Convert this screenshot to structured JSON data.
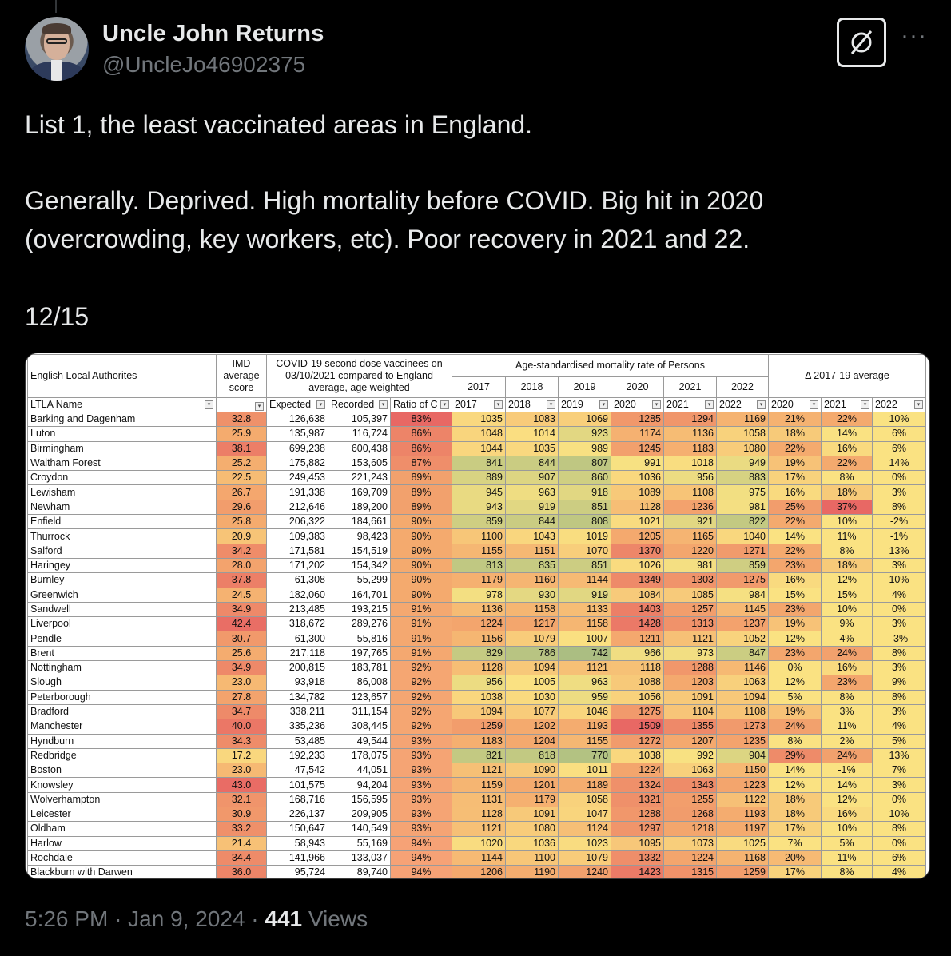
{
  "author": {
    "name": "Uncle John Returns",
    "handle": "@UncleJo46902375"
  },
  "icons": {
    "grok": "grok-slash-icon",
    "more": "more-icon",
    "avatar": "profile-photo"
  },
  "tweet": {
    "line1": "List 1, the least vaccinated areas in England.",
    "line2": "Generally. Deprived. High mortality before COVID. Big hit in 2020 (overcrowding, key workers, etc). Poor recovery in 2021 and 22.",
    "line3": "12/15"
  },
  "table": {
    "headers": {
      "ela": "English Local Authorites",
      "imd": "IMD average score",
      "vacc": "COVID-19 second dose vaccinees on 03/10/2021 compared to England average, age weighted",
      "mort": "Age-standardised mortality rate of Persons",
      "delta": "Δ 2017-19 average",
      "mort_years": [
        "2017",
        "2018",
        "2019",
        "2020",
        "2021",
        "2022"
      ]
    },
    "filters": [
      "LTLA Name",
      "",
      "Expected",
      "Recorded",
      "Ratio of C",
      "2017",
      "2018",
      "2019",
      "2020",
      "2021",
      "2022",
      "2020",
      "2021",
      "2022"
    ],
    "rows": [
      [
        "Barking and Dagenham",
        "32.8",
        "126,638",
        "105,397",
        "83%",
        "1035",
        "1083",
        "1069",
        "1285",
        "1294",
        "1169",
        "21%",
        "22%",
        "10%"
      ],
      [
        "Luton",
        "25.9",
        "135,987",
        "116,724",
        "86%",
        "1048",
        "1014",
        "923",
        "1174",
        "1136",
        "1058",
        "18%",
        "14%",
        "6%"
      ],
      [
        "Birmingham",
        "38.1",
        "699,238",
        "600,438",
        "86%",
        "1044",
        "1035",
        "989",
        "1245",
        "1183",
        "1080",
        "22%",
        "16%",
        "6%"
      ],
      [
        "Waltham Forest",
        "25.2",
        "175,882",
        "153,605",
        "87%",
        "841",
        "844",
        "807",
        "991",
        "1018",
        "949",
        "19%",
        "22%",
        "14%"
      ],
      [
        "Croydon",
        "22.5",
        "249,453",
        "221,243",
        "89%",
        "889",
        "907",
        "860",
        "1036",
        "956",
        "883",
        "17%",
        "8%",
        "0%"
      ],
      [
        "Lewisham",
        "26.7",
        "191,338",
        "169,709",
        "89%",
        "945",
        "963",
        "918",
        "1089",
        "1108",
        "975",
        "16%",
        "18%",
        "3%"
      ],
      [
        "Newham",
        "29.6",
        "212,646",
        "189,200",
        "89%",
        "943",
        "919",
        "851",
        "1128",
        "1236",
        "981",
        "25%",
        "37%",
        "8%"
      ],
      [
        "Enfield",
        "25.8",
        "206,322",
        "184,661",
        "90%",
        "859",
        "844",
        "808",
        "1021",
        "921",
        "822",
        "22%",
        "10%",
        "-2%"
      ],
      [
        "Thurrock",
        "20.9",
        "109,383",
        "98,423",
        "90%",
        "1100",
        "1043",
        "1019",
        "1205",
        "1165",
        "1040",
        "14%",
        "11%",
        "-1%"
      ],
      [
        "Salford",
        "34.2",
        "171,581",
        "154,519",
        "90%",
        "1155",
        "1151",
        "1070",
        "1370",
        "1220",
        "1271",
        "22%",
        "8%",
        "13%"
      ],
      [
        "Haringey",
        "28.0",
        "171,202",
        "154,342",
        "90%",
        "813",
        "835",
        "851",
        "1026",
        "981",
        "859",
        "23%",
        "18%",
        "3%"
      ],
      [
        "Burnley",
        "37.8",
        "61,308",
        "55,299",
        "90%",
        "1179",
        "1160",
        "1144",
        "1349",
        "1303",
        "1275",
        "16%",
        "12%",
        "10%"
      ],
      [
        "Greenwich",
        "24.5",
        "182,060",
        "164,701",
        "90%",
        "978",
        "930",
        "919",
        "1084",
        "1085",
        "984",
        "15%",
        "15%",
        "4%"
      ],
      [
        "Sandwell",
        "34.9",
        "213,485",
        "193,215",
        "91%",
        "1136",
        "1158",
        "1133",
        "1403",
        "1257",
        "1145",
        "23%",
        "10%",
        "0%"
      ],
      [
        "Liverpool",
        "42.4",
        "318,672",
        "289,276",
        "91%",
        "1224",
        "1217",
        "1158",
        "1428",
        "1313",
        "1237",
        "19%",
        "9%",
        "3%"
      ],
      [
        "Pendle",
        "30.7",
        "61,300",
        "55,816",
        "91%",
        "1156",
        "1079",
        "1007",
        "1211",
        "1121",
        "1052",
        "12%",
        "4%",
        "-3%"
      ],
      [
        "Brent",
        "25.6",
        "217,118",
        "197,765",
        "91%",
        "829",
        "786",
        "742",
        "966",
        "973",
        "847",
        "23%",
        "24%",
        "8%"
      ],
      [
        "Nottingham",
        "34.9",
        "200,815",
        "183,781",
        "92%",
        "1128",
        "1094",
        "1121",
        "1118",
        "1288",
        "1146",
        "0%",
        "16%",
        "3%"
      ],
      [
        "Slough",
        "23.0",
        "93,918",
        "86,008",
        "92%",
        "956",
        "1005",
        "963",
        "1088",
        "1203",
        "1063",
        "12%",
        "23%",
        "9%"
      ],
      [
        "Peterborough",
        "27.8",
        "134,782",
        "123,657",
        "92%",
        "1038",
        "1030",
        "959",
        "1056",
        "1091",
        "1094",
        "5%",
        "8%",
        "8%"
      ],
      [
        "Bradford",
        "34.7",
        "338,211",
        "311,154",
        "92%",
        "1094",
        "1077",
        "1046",
        "1275",
        "1104",
        "1108",
        "19%",
        "3%",
        "3%"
      ],
      [
        "Manchester",
        "40.0",
        "335,236",
        "308,445",
        "92%",
        "1259",
        "1202",
        "1193",
        "1509",
        "1355",
        "1273",
        "24%",
        "11%",
        "4%"
      ],
      [
        "Hyndburn",
        "34.3",
        "53,485",
        "49,544",
        "93%",
        "1183",
        "1204",
        "1155",
        "1272",
        "1207",
        "1235",
        "8%",
        "2%",
        "5%"
      ],
      [
        "Redbridge",
        "17.2",
        "192,233",
        "178,075",
        "93%",
        "821",
        "818",
        "770",
        "1038",
        "992",
        "904",
        "29%",
        "24%",
        "13%"
      ],
      [
        "Boston",
        "23.0",
        "47,542",
        "44,051",
        "93%",
        "1121",
        "1090",
        "1011",
        "1224",
        "1063",
        "1150",
        "14%",
        "-1%",
        "7%"
      ],
      [
        "Knowsley",
        "43.0",
        "101,575",
        "94,204",
        "93%",
        "1159",
        "1201",
        "1189",
        "1324",
        "1343",
        "1223",
        "12%",
        "14%",
        "3%"
      ],
      [
        "Wolverhampton",
        "32.1",
        "168,716",
        "156,595",
        "93%",
        "1131",
        "1179",
        "1058",
        "1321",
        "1255",
        "1122",
        "18%",
        "12%",
        "0%"
      ],
      [
        "Leicester",
        "30.9",
        "226,137",
        "209,905",
        "93%",
        "1128",
        "1091",
        "1047",
        "1288",
        "1268",
        "1193",
        "18%",
        "16%",
        "10%"
      ],
      [
        "Oldham",
        "33.2",
        "150,647",
        "140,549",
        "93%",
        "1121",
        "1080",
        "1124",
        "1297",
        "1218",
        "1197",
        "17%",
        "10%",
        "8%"
      ],
      [
        "Harlow",
        "21.4",
        "58,943",
        "55,169",
        "94%",
        "1020",
        "1036",
        "1023",
        "1095",
        "1073",
        "1025",
        "7%",
        "5%",
        "0%"
      ],
      [
        "Rochdale",
        "34.4",
        "141,966",
        "133,037",
        "94%",
        "1144",
        "1100",
        "1079",
        "1332",
        "1224",
        "1168",
        "20%",
        "11%",
        "6%"
      ],
      [
        "Blackburn with Darwen",
        "36.0",
        "95,724",
        "89,740",
        "94%",
        "1206",
        "1190",
        "1240",
        "1423",
        "1315",
        "1259",
        "17%",
        "8%",
        "4%"
      ]
    ]
  },
  "footer": {
    "time": "5:26 PM",
    "sep": "·",
    "date": "Jan 9, 2024",
    "views": "441",
    "views_label": "Views"
  }
}
